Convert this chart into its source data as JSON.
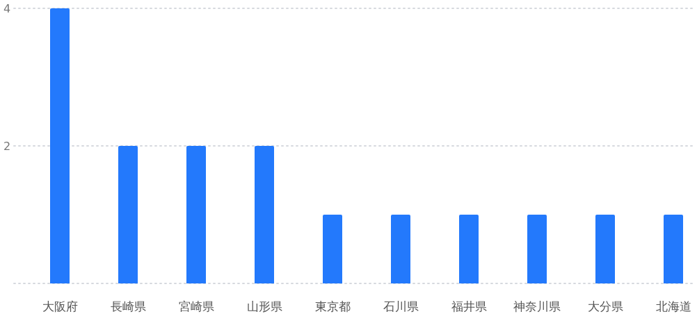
{
  "chart_data": {
    "type": "bar",
    "categories": [
      "大阪府",
      "長崎県",
      "宮崎県",
      "山形県",
      "東京都",
      "石川県",
      "福井県",
      "神奈川県",
      "大分県",
      "北海道"
    ],
    "values": [
      4,
      2,
      2,
      2,
      1,
      1,
      1,
      1,
      1,
      1
    ],
    "color": "#2379fc",
    "ylim": [
      0,
      4
    ],
    "yticks": [
      {
        "value": 0,
        "label": null
      },
      2,
      4
    ],
    "grid": "y"
  }
}
